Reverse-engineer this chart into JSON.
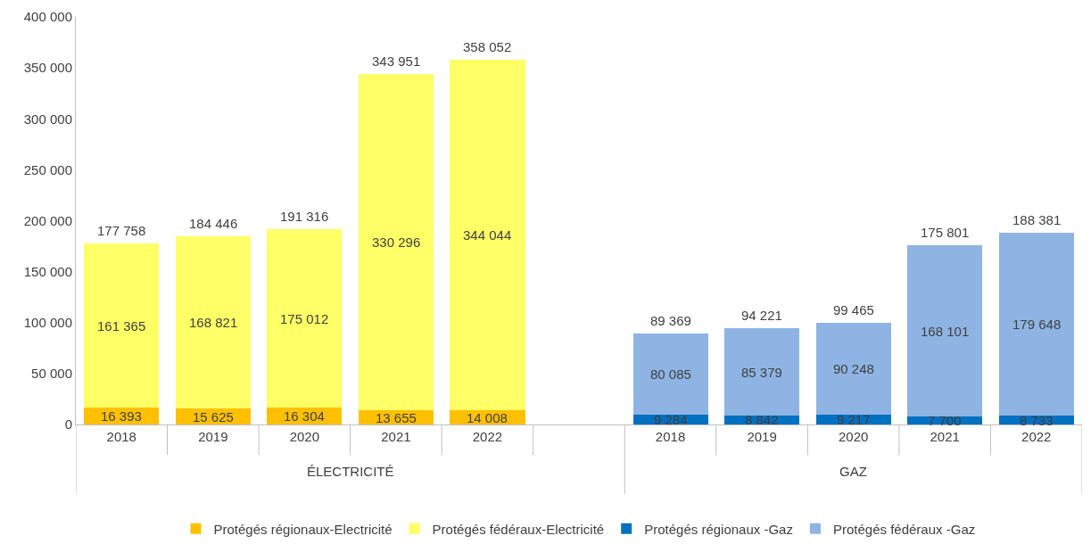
{
  "chart_data": {
    "type": "bar",
    "stacked": true,
    "categories": [
      "2018",
      "2019",
      "2020",
      "2021",
      "2022",
      null,
      "2018",
      "2019",
      "2020",
      "2021",
      "2022"
    ],
    "series": [
      {
        "name": "Protégés régionaux-Electricité",
        "color": "#ffc000",
        "values": [
          16393,
          15625,
          16304,
          13655,
          14008,
          null,
          null,
          null,
          null,
          null,
          null
        ],
        "value_labels": [
          "16 393",
          "15 625",
          "16 304",
          "13 655",
          "14 008",
          null,
          null,
          null,
          null,
          null,
          null
        ]
      },
      {
        "name": "Protégés fédéraux-Electricité",
        "color": "#ffff66",
        "values": [
          161365,
          168821,
          175012,
          330296,
          344044,
          null,
          null,
          null,
          null,
          null,
          null
        ],
        "value_labels": [
          "161 365",
          "168 821",
          "175 012",
          "330 296",
          "344 044",
          null,
          null,
          null,
          null,
          null,
          null
        ]
      },
      {
        "name": "Protégés régionaux -Gaz",
        "color": "#0070c0",
        "values": [
          null,
          null,
          null,
          null,
          null,
          null,
          9284,
          8842,
          9217,
          7700,
          8733
        ],
        "value_labels": [
          null,
          null,
          null,
          null,
          null,
          null,
          "9 284",
          "8 842",
          "9 217",
          "7 700",
          "8 733"
        ]
      },
      {
        "name": "Protégés fédéraux -Gaz",
        "color": "#8eb4e3",
        "values": [
          null,
          null,
          null,
          null,
          null,
          null,
          80085,
          85379,
          90248,
          168101,
          179648
        ],
        "value_labels": [
          null,
          null,
          null,
          null,
          null,
          null,
          "80 085",
          "85 379",
          "90 248",
          "168 101",
          "179 648"
        ]
      }
    ],
    "totals": [
      "177 758",
      "184 446",
      "191 316",
      "343 951",
      "358 052",
      null,
      "89 369",
      "94 221",
      "99 465",
      "175 801",
      "188 381"
    ],
    "annotations": [
      "ÉLECTRICITÉ",
      "GAZ"
    ],
    "ylim": [
      0,
      400000
    ],
    "yticks": [
      {
        "value": 0,
        "label": "0"
      },
      {
        "value": 50000,
        "label": "50 000"
      },
      {
        "value": 100000,
        "label": "100 000"
      },
      {
        "value": 150000,
        "label": "150 000"
      },
      {
        "value": 200000,
        "label": "200 000"
      },
      {
        "value": 250000,
        "label": "250 000"
      },
      {
        "value": 300000,
        "label": "300 000"
      },
      {
        "value": 350000,
        "label": "350 000"
      },
      {
        "value": 400000,
        "label": "400 000"
      }
    ],
    "legend": "bottom"
  }
}
